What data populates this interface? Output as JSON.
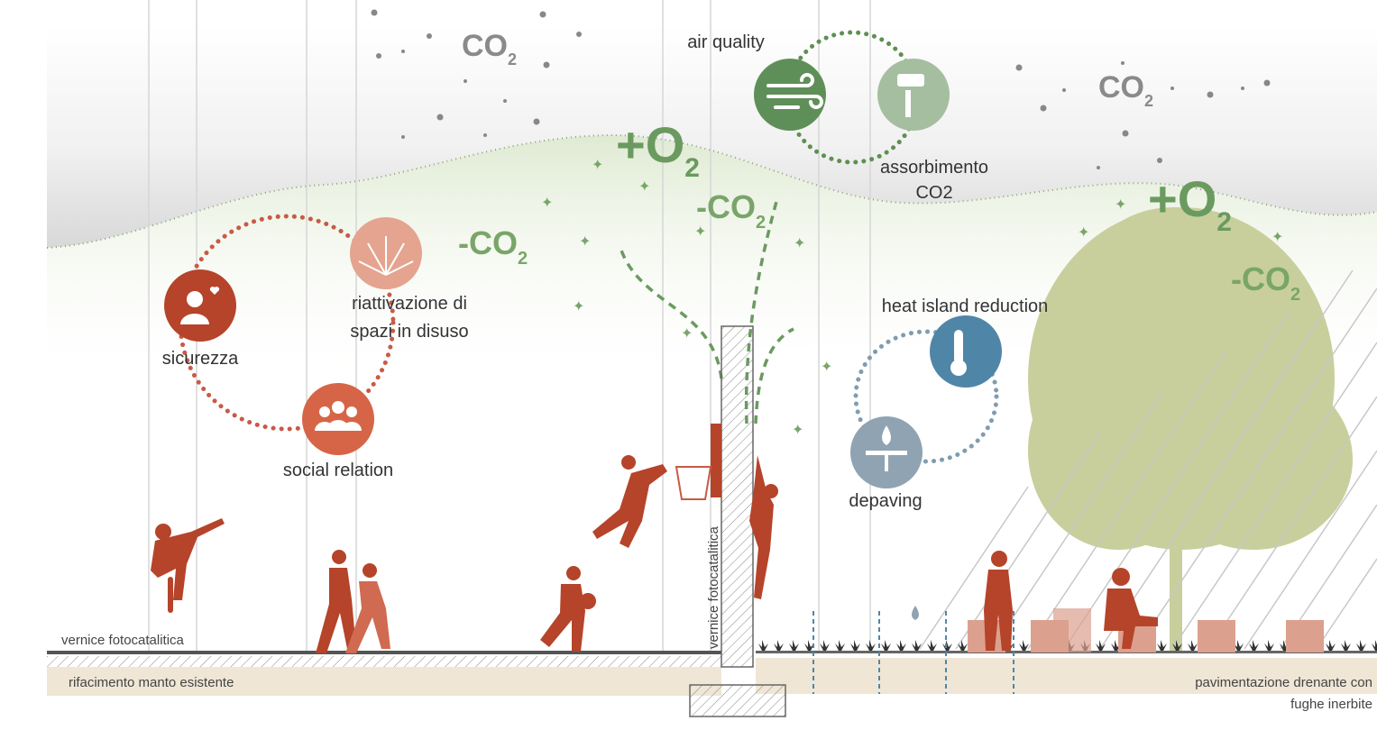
{
  "labels": {
    "air_quality": "air quality",
    "assorbimento": [
      "assorbimento",
      "CO2"
    ],
    "heat_island": "heat island reduction",
    "riattivazione": [
      "riattivazione di",
      "spazi in disuso"
    ],
    "sicurezza": "sicurezza",
    "social_relation": "social relation",
    "depaving": "depaving",
    "vernice_ground": "vernice fotocatalitica",
    "vernice_wall": "vernice fotocatalitica",
    "rifacimento": "rifacimento manto esistente",
    "pavimentazione": [
      "pavimentazione drenante con",
      "fughe inerbite"
    ]
  },
  "gases": [
    {
      "text": "CO",
      "sub": "2"
    },
    {
      "text": "CO",
      "sub": "2"
    },
    {
      "text": "+O",
      "sub": "2"
    },
    {
      "text": "-CO",
      "sub": "2"
    },
    {
      "text": "-CO",
      "sub": "2"
    },
    {
      "text": "+O",
      "sub": "2"
    },
    {
      "text": "-CO",
      "sub": "2"
    }
  ]
}
